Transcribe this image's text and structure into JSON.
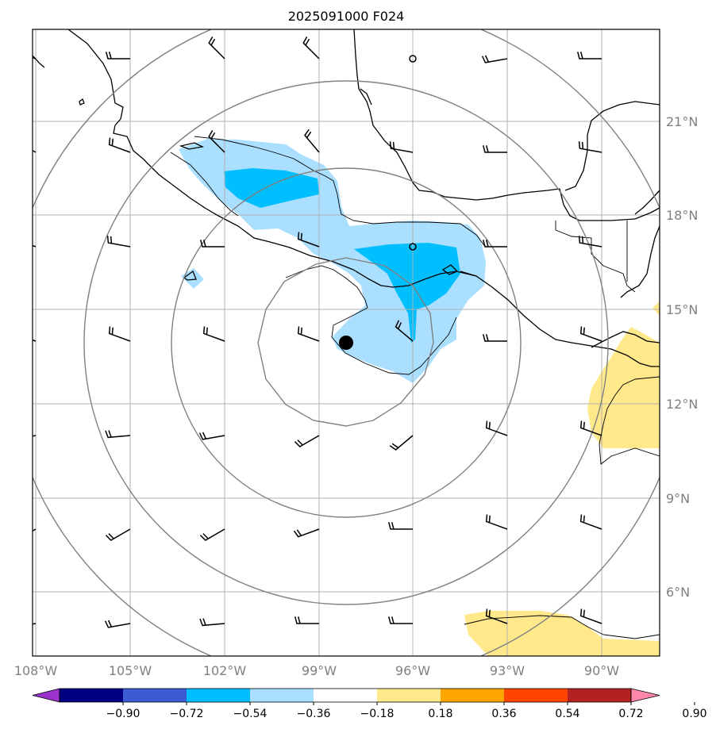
{
  "title": "2025091000 F024",
  "map": {
    "lon_range": [
      -108,
      -88.5
    ],
    "lat_range": [
      3.5,
      23.5
    ],
    "lat_labels": [
      "21°N",
      "18°N",
      "15°N",
      "12°N",
      "9°N",
      "6°N"
    ],
    "lon_labels": [
      "108°W",
      "105°W",
      "102°W",
      "99°W",
      "96°W",
      "93°W",
      "90°W"
    ],
    "storm_center": {
      "lon": -98.0,
      "lat": 13.9
    },
    "range_rings_deg": [
      3,
      6,
      9,
      12
    ],
    "stations": [
      {
        "lon": -96.0,
        "lat": 23.0
      },
      {
        "lon": -96.0,
        "lat": 17.0
      }
    ]
  },
  "colorbar": {
    "ticks": [
      "−0.90",
      "−0.72",
      "−0.54",
      "−0.36",
      "−0.18",
      "0.18",
      "0.36",
      "0.54",
      "0.72",
      "0.90"
    ],
    "colors": [
      "#9933cc",
      "#000080",
      "#3c5dd1",
      "#00bfff",
      "#aadfff",
      "#ffffff",
      "#ffe98a",
      "#ffa500",
      "#ff4500",
      "#b22222",
      "#ff88aa"
    ]
  },
  "colors": {
    "neg_light": "#aadfff",
    "neg_mid": "#00bfff",
    "pos_light": "#ffe98a",
    "ring": "#808080",
    "grid": "#b0b0b0"
  }
}
